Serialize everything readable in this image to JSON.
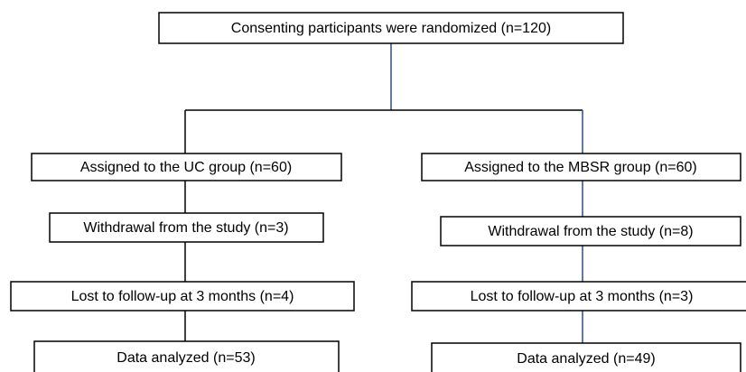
{
  "nodes": [
    {
      "label": "Consenting participants were randomized (n=120)"
    },
    {
      "label": "Assigned to the UC group (n=60)"
    },
    {
      "label": "Withdrawal from the study (n=3)"
    },
    {
      "label": "Lost to follow-up at 3 months (n=4)"
    },
    {
      "label": "Data analyzed (n=53)"
    },
    {
      "label": "Assigned to the MBSR group (n=60)"
    },
    {
      "label": "Withdrawal from the study (n=8)"
    },
    {
      "label": "Lost to follow-up at 3 months (n=3)"
    },
    {
      "label": "Data analyzed (n=49)"
    }
  ]
}
